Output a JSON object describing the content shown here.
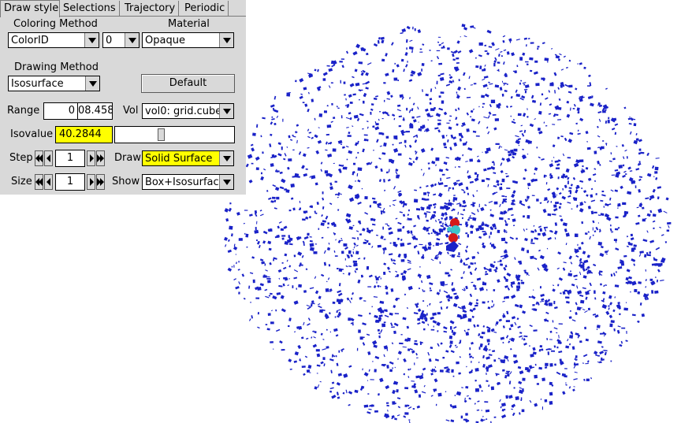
{
  "tabs": [
    {
      "label": "Draw style",
      "active": true
    },
    {
      "label": "Selections",
      "active": false
    },
    {
      "label": "Trajectory",
      "active": false
    },
    {
      "label": "Periodic",
      "active": false
    }
  ],
  "coloring": {
    "label": "Coloring Method",
    "method": "ColorID",
    "color_id": "0"
  },
  "material": {
    "label": "Material",
    "value": "Opaque"
  },
  "drawing": {
    "label": "Drawing Method",
    "value": "Isosurface",
    "default_button": "Default"
  },
  "range": {
    "label": "Range",
    "min": "0",
    "max": "08.458"
  },
  "vol": {
    "label": "Vol",
    "value": "vol0: grid.cube"
  },
  "isovalue": {
    "label": "Isovalue",
    "value": "40.2844",
    "slider_fraction": 0.38
  },
  "step": {
    "label": "Step",
    "value": "1"
  },
  "size": {
    "label": "Size",
    "value": "1"
  },
  "draw": {
    "label": "Draw",
    "value": "Solid Surface"
  },
  "show": {
    "label": "Show",
    "value": "Box+Isosurface"
  },
  "colors": {
    "panel_bg": "#d9d9d9",
    "highlight": "#ffff00",
    "isosurface": "#1a22c8",
    "atom_oxygen": "#e02020",
    "atom_carbon": "#30c0c8"
  }
}
